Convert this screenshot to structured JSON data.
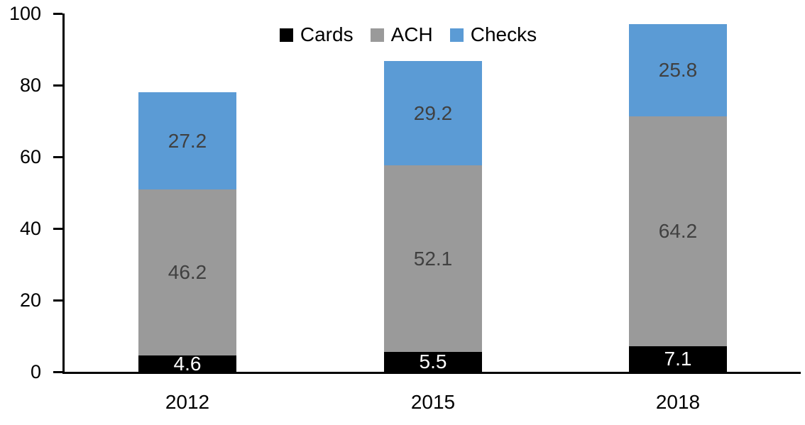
{
  "chart_data": {
    "type": "bar",
    "stacked": true,
    "title": "",
    "xlabel": "",
    "ylabel": "",
    "categories": [
      "2012",
      "2015",
      "2018"
    ],
    "series": [
      {
        "name": "Cards",
        "values": [
          4.6,
          5.5,
          7.1
        ],
        "color": "#000000",
        "label_color": "#FFFFFF"
      },
      {
        "name": "ACH",
        "values": [
          46.2,
          52.1,
          64.2
        ],
        "color": "#9A9A9A",
        "label_color": "#404040"
      },
      {
        "name": "Checks",
        "values": [
          27.2,
          29.2,
          25.8
        ],
        "color": "#5B9BD5",
        "label_color": "#404040"
      }
    ],
    "ylim": [
      0,
      100
    ],
    "yticks": [
      0,
      20,
      40,
      60,
      80,
      100
    ],
    "grid": false,
    "legend_position": "top-center",
    "legend_labels": [
      "Cards",
      "ACH",
      "Checks"
    ],
    "axis_color": "#000000",
    "background_color": "#FFFFFF"
  }
}
